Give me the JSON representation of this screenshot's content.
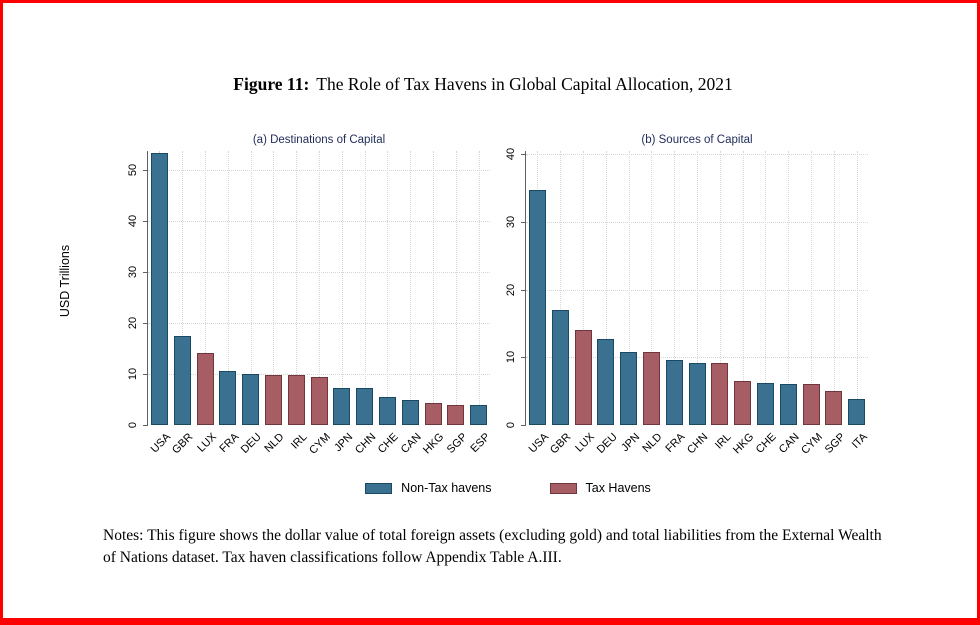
{
  "figure": {
    "title_label": "Figure 11:",
    "title_text": "The Role of Tax Havens in Global Capital Allocation, 2021",
    "notes": "Notes: This figure shows the dollar value of total foreign assets (excluding gold) and total liabilities from the External Wealth of Nations dataset. Tax haven classifications follow Appendix Table A.III."
  },
  "colors": {
    "frame": "#FF0000",
    "background": "#FFFFFF",
    "grid": "#D6D6D6",
    "axis": "#606060",
    "panel_title": "#1E2B57",
    "text": "#000000"
  },
  "legend": {
    "items": [
      {
        "key": "non-tax",
        "label": "Non-Tax havens",
        "fill": "#3A7191",
        "border": "#1A4A63"
      },
      {
        "key": "tax",
        "label": "Tax Havens",
        "fill": "#A65D63",
        "border": "#70363C"
      }
    ]
  },
  "chart_data": [
    {
      "type": "bar",
      "title": "(a) Destinations of Capital",
      "ylabel": "USD Trillions",
      "xlabel": "",
      "ylim": [
        0,
        53.7
      ],
      "yticks": [
        0,
        10,
        20,
        30,
        40,
        50
      ],
      "grid": "dotted horizontal and vertical",
      "categories": [
        "USA",
        "GBR",
        "LUX",
        "FRA",
        "DEU",
        "NLD",
        "IRL",
        "CYM",
        "JPN",
        "CHN",
        "CHE",
        "CAN",
        "HKG",
        "SGP",
        "ESP"
      ],
      "values": [
        53.3,
        17.5,
        14.1,
        10.6,
        10.1,
        9.9,
        9.9,
        9.4,
        7.3,
        7.3,
        5.5,
        5.0,
        4.4,
        3.9,
        3.9
      ],
      "groups": [
        "non-tax",
        "non-tax",
        "tax",
        "non-tax",
        "non-tax",
        "tax",
        "tax",
        "tax",
        "non-tax",
        "non-tax",
        "non-tax",
        "non-tax",
        "tax",
        "tax",
        "non-tax"
      ]
    },
    {
      "type": "bar",
      "title": "(b) Sources of Capital",
      "ylabel": "",
      "xlabel": "",
      "ylim": [
        0,
        40.5
      ],
      "yticks": [
        0,
        10,
        20,
        30,
        40
      ],
      "grid": "dotted horizontal and vertical",
      "categories": [
        "USA",
        "GBR",
        "LUX",
        "DEU",
        "JPN",
        "NLD",
        "FRA",
        "CHN",
        "IRL",
        "HKG",
        "CHE",
        "CAN",
        "CYM",
        "SGP",
        "ITA"
      ],
      "values": [
        34.7,
        17.0,
        14.0,
        12.7,
        10.8,
        10.8,
        9.6,
        9.2,
        9.1,
        6.5,
        6.2,
        6.1,
        6.0,
        5.0,
        3.8
      ],
      "groups": [
        "non-tax",
        "non-tax",
        "tax",
        "non-tax",
        "non-tax",
        "tax",
        "non-tax",
        "non-tax",
        "tax",
        "tax",
        "non-tax",
        "non-tax",
        "tax",
        "tax",
        "non-tax"
      ]
    }
  ]
}
